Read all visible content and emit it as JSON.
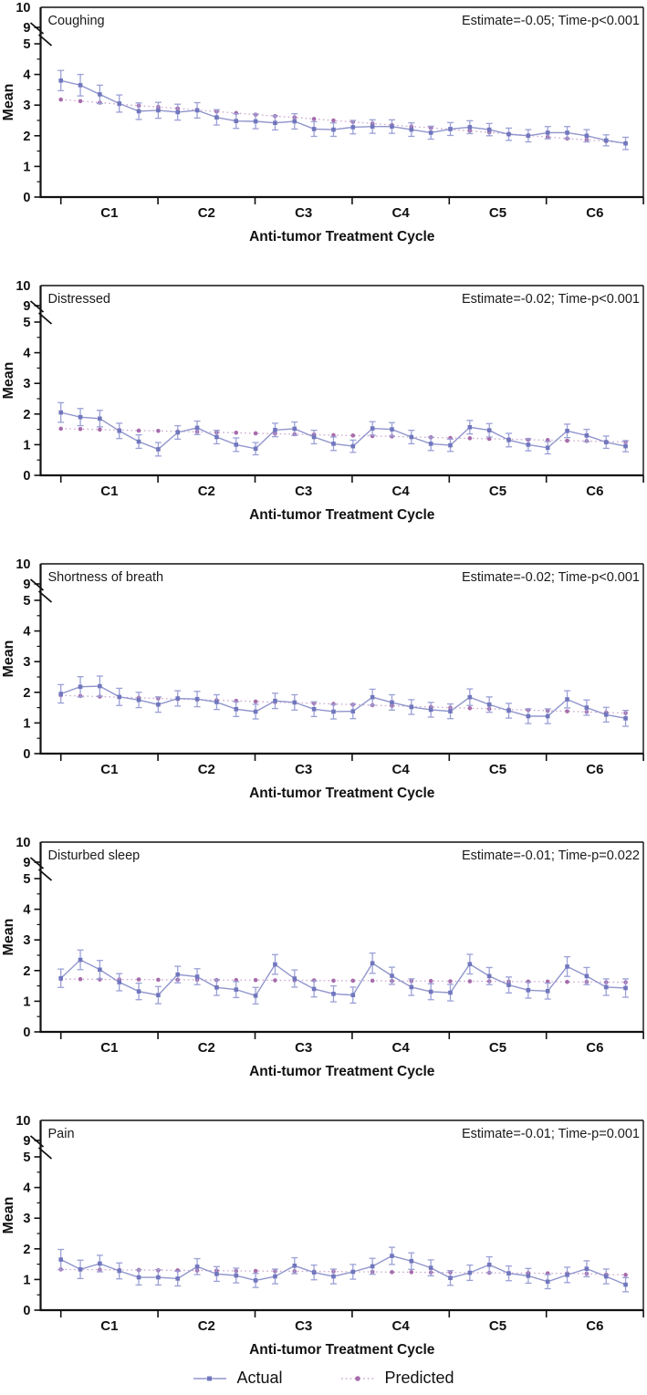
{
  "figure": {
    "xlabel": "Anti-tumor Treatment Cycle",
    "ylabel": "Mean",
    "x_tick_labels": [
      "C1",
      "C2",
      "C3",
      "C4",
      "C5",
      "C6"
    ],
    "points_per_cycle": 5,
    "n_points": 30,
    "y_axis": {
      "lower_ticks": [
        "0",
        "1",
        "2",
        "3",
        "4",
        "5"
      ],
      "upper_ticks": [
        "9",
        "10"
      ],
      "minor_tick_step": 0.5,
      "break_between": [
        5,
        9
      ],
      "ylim_lower": [
        0,
        5
      ],
      "ylim_upper": [
        9,
        10
      ]
    },
    "legend": [
      {
        "label": "Actual",
        "style": "solid"
      },
      {
        "label": "Predicted",
        "style": "dotted"
      }
    ],
    "colors": {
      "actual_line": "#9095cc",
      "actual_marker": "#7177bd",
      "actual_error": "#9ba0d6",
      "predicted_line": "#c9a8ce",
      "predicted_marker": "#a76cab",
      "axis": "#111111",
      "text": "#1a1a1a"
    }
  },
  "chart_data": [
    {
      "type": "line",
      "title": "Coughing",
      "annotation": "Estimate=-0.05;  Time-p<0.001",
      "xlabel": "Anti-tumor Treatment Cycle",
      "ylabel": "Mean",
      "series": [
        {
          "name": "Actual",
          "values": [
            3.8,
            3.65,
            3.35,
            3.05,
            2.8,
            2.83,
            2.77,
            2.83,
            2.6,
            2.48,
            2.47,
            2.42,
            2.47,
            2.22,
            2.2,
            2.28,
            2.3,
            2.3,
            2.2,
            2.1,
            2.22,
            2.28,
            2.2,
            2.05,
            2.0,
            2.1,
            2.1,
            2.0,
            1.85,
            1.75
          ],
          "errors": [
            0.33,
            0.35,
            0.3,
            0.28,
            0.27,
            0.26,
            0.26,
            0.25,
            0.25,
            0.24,
            0.24,
            0.23,
            0.25,
            0.24,
            0.22,
            0.22,
            0.22,
            0.22,
            0.22,
            0.21,
            0.21,
            0.21,
            0.2,
            0.2,
            0.2,
            0.2,
            0.2,
            0.2,
            0.18,
            0.2
          ]
        },
        {
          "name": "Predicted",
          "values": [
            3.18,
            3.13,
            3.08,
            3.03,
            2.98,
            2.94,
            2.89,
            2.84,
            2.79,
            2.74,
            2.69,
            2.64,
            2.6,
            2.55,
            2.5,
            2.45,
            2.4,
            2.35,
            2.3,
            2.26,
            2.21,
            2.16,
            2.11,
            2.06,
            2.01,
            1.96,
            1.91,
            1.87,
            1.82,
            1.76
          ]
        }
      ]
    },
    {
      "type": "line",
      "title": "Distressed",
      "annotation": "Estimate=-0.02;  Time-p<0.001",
      "xlabel": "Anti-tumor Treatment Cycle",
      "ylabel": "Mean",
      "series": [
        {
          "name": "Actual",
          "values": [
            2.05,
            1.9,
            1.85,
            1.45,
            1.1,
            0.85,
            1.4,
            1.55,
            1.25,
            1.0,
            0.87,
            1.48,
            1.52,
            1.25,
            1.03,
            0.95,
            1.53,
            1.5,
            1.25,
            1.03,
            0.98,
            1.57,
            1.47,
            1.15,
            1.0,
            0.9,
            1.45,
            1.3,
            1.08,
            0.95
          ],
          "errors": [
            0.32,
            0.28,
            0.27,
            0.25,
            0.22,
            0.22,
            0.22,
            0.22,
            0.22,
            0.22,
            0.2,
            0.22,
            0.22,
            0.22,
            0.22,
            0.2,
            0.22,
            0.22,
            0.22,
            0.22,
            0.2,
            0.22,
            0.22,
            0.22,
            0.2,
            0.2,
            0.22,
            0.2,
            0.2,
            0.18
          ]
        },
        {
          "name": "Predicted",
          "values": [
            1.52,
            1.51,
            1.49,
            1.48,
            1.46,
            1.45,
            1.43,
            1.42,
            1.4,
            1.39,
            1.37,
            1.36,
            1.34,
            1.33,
            1.31,
            1.3,
            1.28,
            1.27,
            1.25,
            1.24,
            1.22,
            1.21,
            1.19,
            1.18,
            1.16,
            1.15,
            1.13,
            1.12,
            1.1,
            1.09
          ]
        }
      ]
    },
    {
      "type": "line",
      "title": "Shortness of breath",
      "annotation": "Estimate=-0.02;  Time-p<0.001",
      "xlabel": "Anti-tumor Treatment Cycle",
      "ylabel": "Mean",
      "series": [
        {
          "name": "Actual",
          "values": [
            1.95,
            2.18,
            2.2,
            1.85,
            1.75,
            1.6,
            1.8,
            1.78,
            1.68,
            1.45,
            1.37,
            1.72,
            1.67,
            1.45,
            1.37,
            1.38,
            1.84,
            1.67,
            1.52,
            1.43,
            1.38,
            1.84,
            1.6,
            1.4,
            1.22,
            1.22,
            1.77,
            1.5,
            1.27,
            1.15
          ],
          "errors": [
            0.3,
            0.33,
            0.33,
            0.28,
            0.25,
            0.25,
            0.25,
            0.25,
            0.24,
            0.24,
            0.24,
            0.25,
            0.25,
            0.24,
            0.24,
            0.24,
            0.26,
            0.25,
            0.24,
            0.24,
            0.24,
            0.27,
            0.25,
            0.24,
            0.24,
            0.24,
            0.28,
            0.25,
            0.24,
            0.26
          ]
        },
        {
          "name": "Predicted",
          "values": [
            1.9,
            1.88,
            1.86,
            1.84,
            1.82,
            1.8,
            1.78,
            1.76,
            1.74,
            1.72,
            1.7,
            1.68,
            1.66,
            1.64,
            1.62,
            1.6,
            1.58,
            1.56,
            1.54,
            1.52,
            1.5,
            1.48,
            1.46,
            1.44,
            1.42,
            1.4,
            1.38,
            1.36,
            1.34,
            1.32
          ]
        }
      ]
    },
    {
      "type": "line",
      "title": "Disturbed sleep",
      "annotation": "Estimate=-0.01;  Time-p=0.022",
      "xlabel": "Anti-tumor Treatment Cycle",
      "ylabel": "Mean",
      "series": [
        {
          "name": "Actual",
          "values": [
            1.75,
            2.35,
            2.03,
            1.62,
            1.32,
            1.2,
            1.87,
            1.8,
            1.45,
            1.38,
            1.18,
            2.2,
            1.74,
            1.4,
            1.24,
            1.2,
            2.24,
            1.83,
            1.46,
            1.31,
            1.28,
            2.21,
            1.82,
            1.53,
            1.36,
            1.33,
            2.13,
            1.82,
            1.46,
            1.43
          ],
          "errors": [
            0.3,
            0.32,
            0.3,
            0.28,
            0.27,
            0.28,
            0.27,
            0.26,
            0.26,
            0.26,
            0.27,
            0.32,
            0.28,
            0.26,
            0.26,
            0.26,
            0.33,
            0.28,
            0.27,
            0.26,
            0.27,
            0.32,
            0.28,
            0.26,
            0.26,
            0.26,
            0.32,
            0.28,
            0.27,
            0.3
          ]
        },
        {
          "name": "Predicted",
          "values": [
            1.72,
            1.72,
            1.71,
            1.71,
            1.71,
            1.7,
            1.7,
            1.7,
            1.69,
            1.69,
            1.69,
            1.68,
            1.68,
            1.68,
            1.67,
            1.67,
            1.67,
            1.66,
            1.66,
            1.66,
            1.65,
            1.65,
            1.65,
            1.64,
            1.64,
            1.64,
            1.63,
            1.63,
            1.62,
            1.62
          ]
        }
      ]
    },
    {
      "type": "line",
      "title": "Pain",
      "annotation": "Estimate=-0.01;  Time-p=0.001",
      "xlabel": "Anti-tumor Treatment Cycle",
      "ylabel": "Mean",
      "series": [
        {
          "name": "Actual",
          "values": [
            1.65,
            1.33,
            1.52,
            1.28,
            1.07,
            1.07,
            1.03,
            1.42,
            1.18,
            1.13,
            0.97,
            1.1,
            1.45,
            1.23,
            1.1,
            1.25,
            1.43,
            1.77,
            1.6,
            1.38,
            1.05,
            1.22,
            1.48,
            1.2,
            1.12,
            0.93,
            1.15,
            1.35,
            1.1,
            0.83
          ],
          "errors": [
            0.33,
            0.3,
            0.27,
            0.26,
            0.25,
            0.25,
            0.24,
            0.26,
            0.24,
            0.24,
            0.23,
            0.24,
            0.26,
            0.24,
            0.24,
            0.24,
            0.26,
            0.28,
            0.27,
            0.26,
            0.24,
            0.25,
            0.26,
            0.24,
            0.24,
            0.23,
            0.25,
            0.26,
            0.24,
            0.23
          ]
        },
        {
          "name": "Predicted",
          "values": [
            1.33,
            1.32,
            1.32,
            1.31,
            1.31,
            1.3,
            1.3,
            1.29,
            1.29,
            1.28,
            1.28,
            1.27,
            1.27,
            1.26,
            1.26,
            1.25,
            1.25,
            1.24,
            1.24,
            1.23,
            1.23,
            1.22,
            1.22,
            1.21,
            1.21,
            1.2,
            1.2,
            1.19,
            1.16,
            1.15
          ]
        }
      ]
    }
  ]
}
